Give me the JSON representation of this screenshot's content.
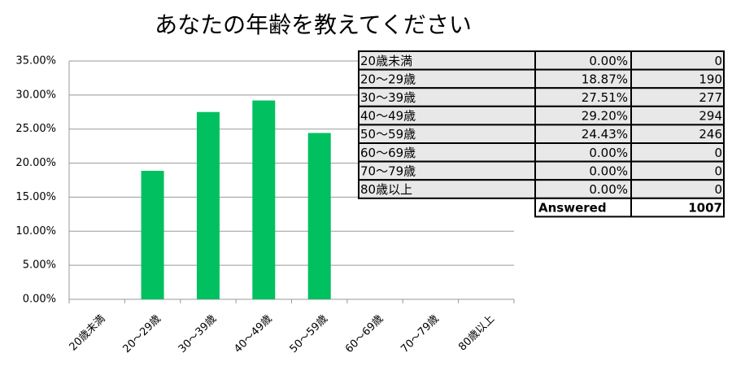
{
  "chart_data": {
    "type": "bar",
    "title": "あなたの年齢を教えてください",
    "categories": [
      "20歳未満",
      "20～29歳",
      "30～39歳",
      "40～49歳",
      "50～59歳",
      "60～69歳",
      "70～79歳",
      "80歳以上"
    ],
    "values": [
      0,
      18.87,
      27.51,
      29.2,
      24.43,
      0,
      0,
      0
    ],
    "value_labels": [
      "0.00%",
      "18.87%",
      "27.51%",
      "29.20%",
      "24.43%",
      "0.00%",
      "0.00%",
      "0.00%"
    ],
    "color": "#00c060",
    "ylim": [
      0,
      35
    ],
    "yticks": [
      {
        "value": 0,
        "label": "0.00%"
      },
      {
        "value": 5,
        "label": "5.00%"
      },
      {
        "value": 10,
        "label": "10.00%"
      },
      {
        "value": 15,
        "label": "15.00%"
      },
      {
        "value": 20,
        "label": "20.00%"
      },
      {
        "value": 25,
        "label": "25.00%"
      },
      {
        "value": 30,
        "label": "30.00%"
      },
      {
        "value": 35,
        "label": "35.00%"
      }
    ],
    "grid": true
  },
  "table": {
    "counts": [
      0,
      190,
      277,
      294,
      246,
      0,
      0,
      0
    ],
    "total_label": "Answered",
    "total": 1007
  }
}
